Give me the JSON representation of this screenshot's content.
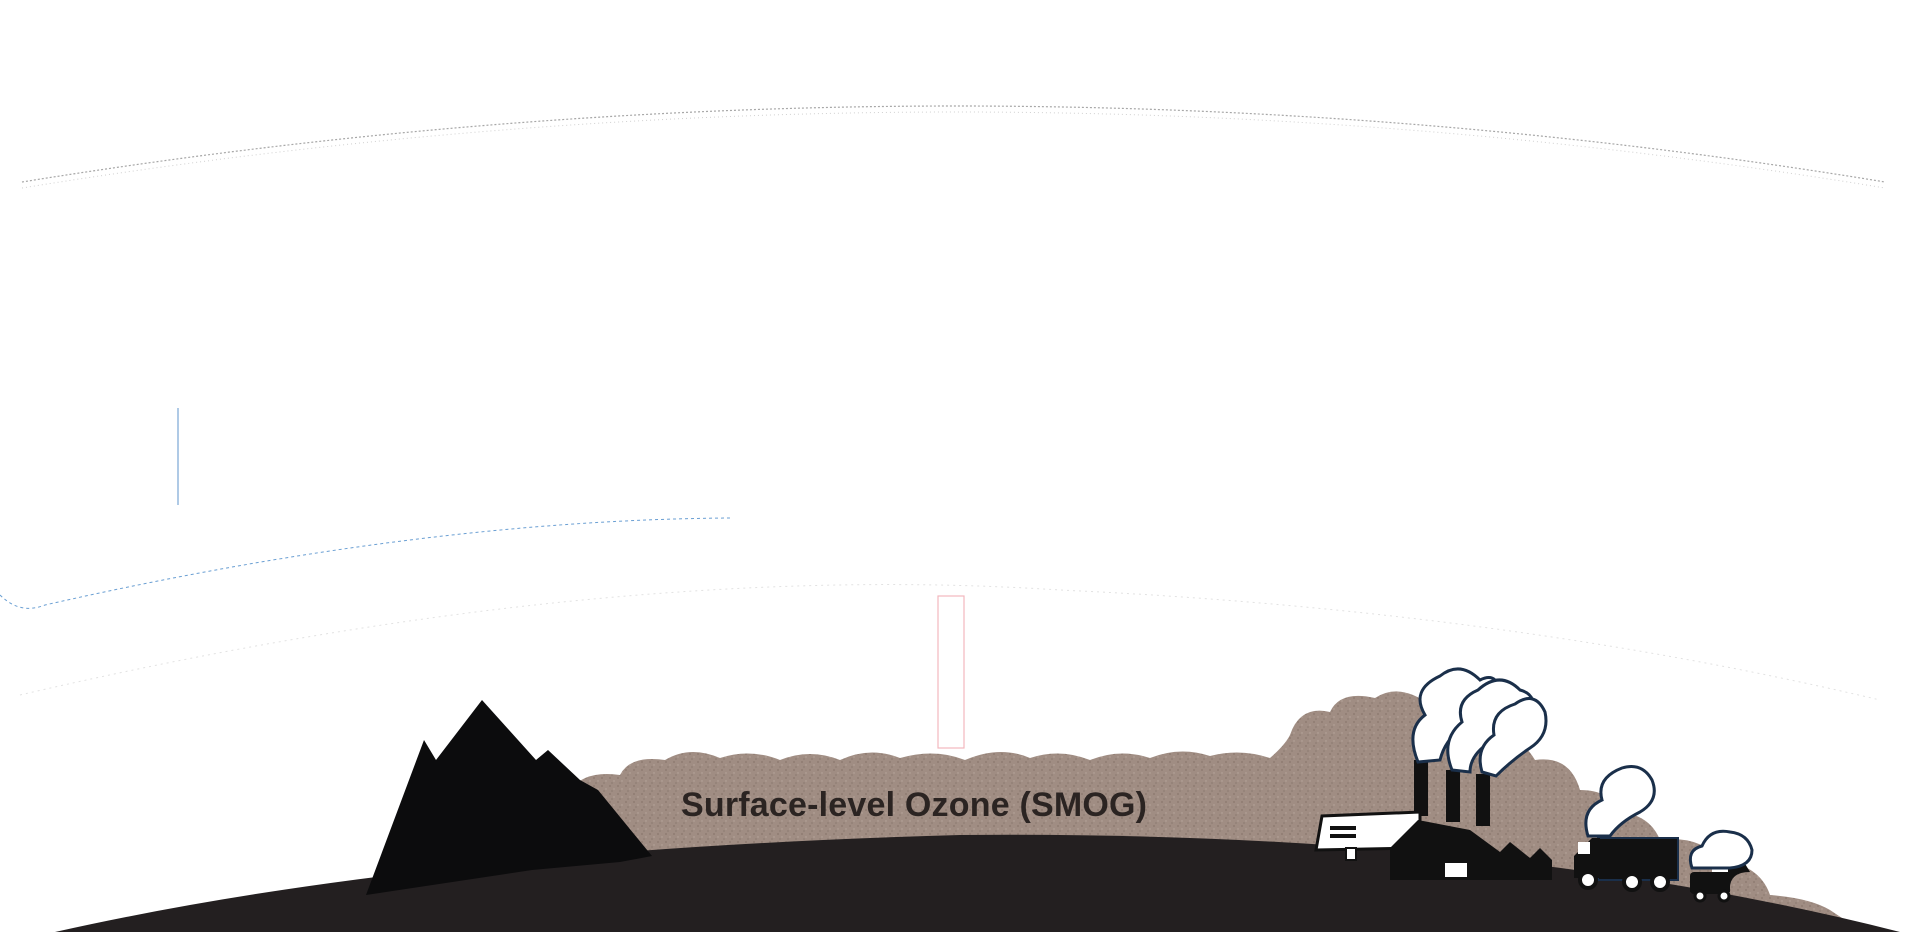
{
  "diagram": {
    "smog_label": "Surface-level Ozone (SMOG)",
    "colors": {
      "background": "#ffffff",
      "ground": "#231f20",
      "smog": "#a08d83",
      "smog_speckle": "#8a776d",
      "mountain": "#0c0c0d",
      "factory": "#111111",
      "factory_light": "#ffffff",
      "dotted_arc": "#9e9e9e",
      "blue_arc": "#4a86c5",
      "red_column": "#e0303a"
    },
    "icons": [
      "mountain-icon",
      "factory-icon",
      "smokestack-smoke-icon",
      "truck-icon",
      "car-icon",
      "exhaust-smoke-icon"
    ]
  }
}
